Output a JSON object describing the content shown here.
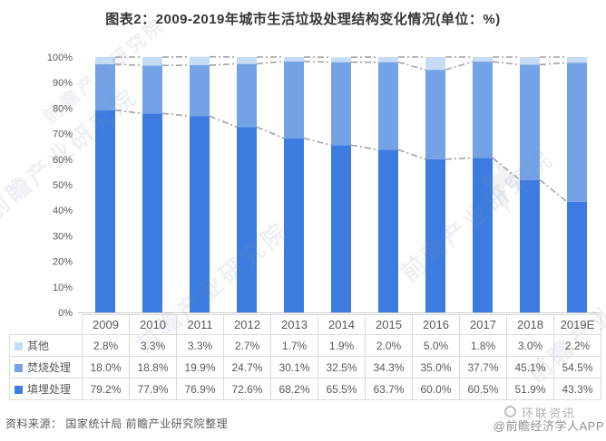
{
  "title": "图表2：2009-2019年城市生活垃圾处理结构变化情况(单位：%)",
  "chart_data": {
    "type": "bar",
    "stacked": true,
    "unit": "%",
    "title": "图表2：2009-2019年城市生活垃圾处理结构变化情况(单位：%)",
    "categories": [
      "2009",
      "2010",
      "2011",
      "2012",
      "2013",
      "2014",
      "2015",
      "2016",
      "2017",
      "2018",
      "2019E"
    ],
    "series": [
      {
        "name": "填埋处理",
        "color": "#3C7BDF",
        "values": [
          79.2,
          77.9,
          76.9,
          72.6,
          68.2,
          65.5,
          63.7,
          60.0,
          60.5,
          51.9,
          43.3
        ]
      },
      {
        "name": "焚烧处理",
        "color": "#74A2E7",
        "values": [
          18.0,
          18.8,
          19.9,
          24.7,
          30.1,
          32.5,
          34.3,
          35.0,
          37.7,
          45.1,
          54.5
        ]
      },
      {
        "name": "其他",
        "color": "#C6DBF4",
        "values": [
          2.8,
          3.3,
          3.3,
          2.7,
          1.7,
          1.9,
          2.0,
          5.0,
          1.8,
          3.0,
          2.2
        ]
      }
    ],
    "xlabel": "",
    "ylabel": "",
    "ylim": [
      0,
      100
    ],
    "ytick_step": 10,
    "ytick_suffix": "%",
    "grid": false,
    "legend_position": "table-left",
    "series_lines": {
      "style": "dash-dot",
      "color": "#A2A2A2"
    },
    "table_row_order": [
      "其他",
      "焚烧处理",
      "填埋处理"
    ]
  },
  "source_note": "资料来源： 国家统计局 前瞻产业研究院整理",
  "credit": "@前瞻经济学人APP",
  "overlay_watermark": "环联资讯",
  "diagonal_watermark": "前瞻产业研究院"
}
